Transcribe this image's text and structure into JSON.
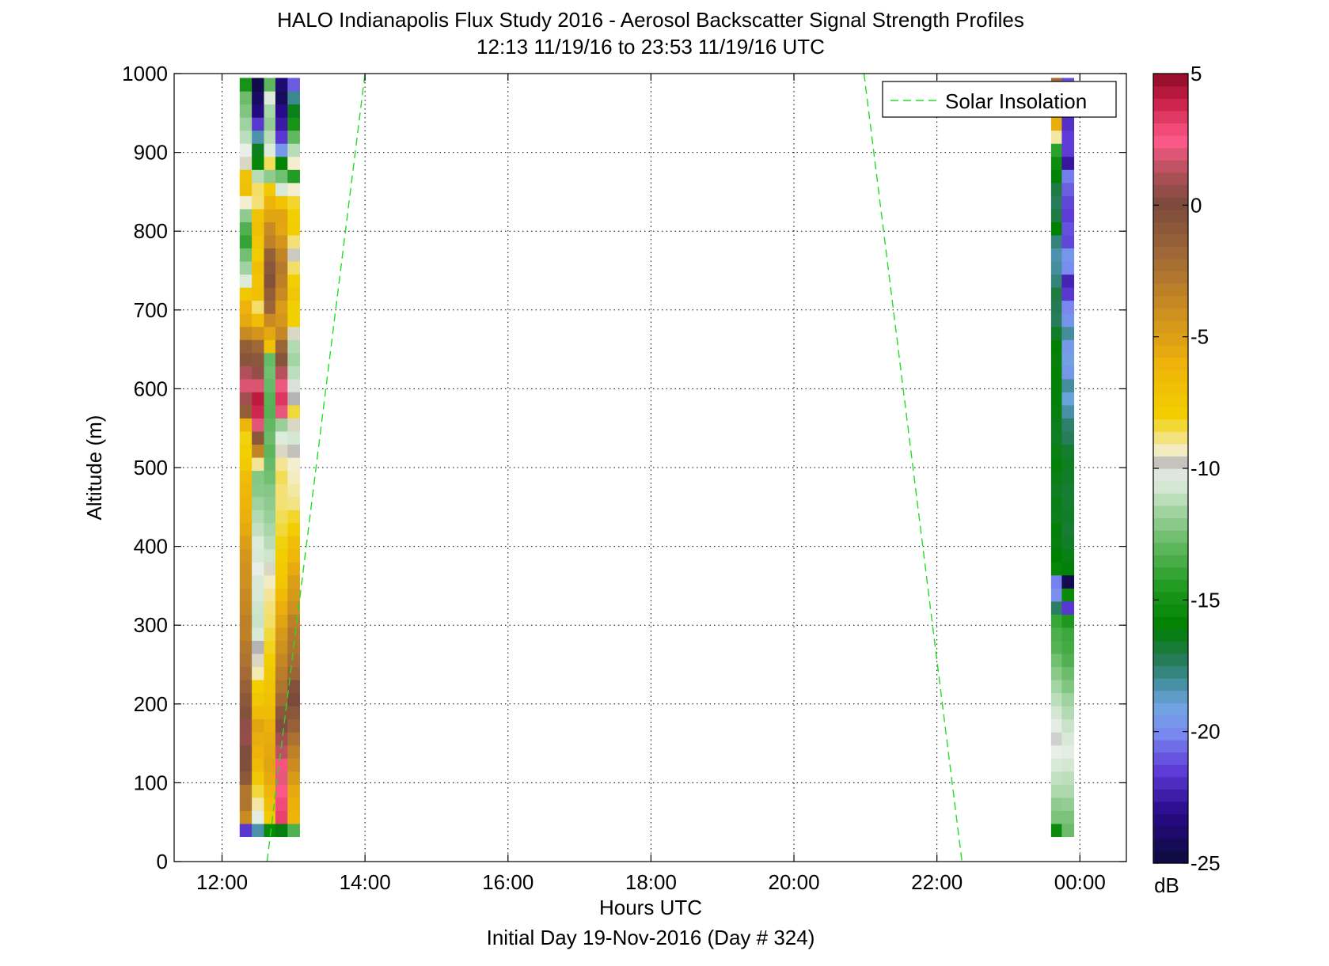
{
  "chart_data": {
    "type": "heatmap",
    "title": "HALO Indianapolis Flux Study 2016 - Aerosol Backscatter Signal Strength Profiles",
    "subtitle": "12:13 11/19/16 to 23:53 11/19/16  UTC",
    "xlabel": "Hours UTC",
    "xlabel2": "Initial Day 19-Nov-2016 (Day # 324)",
    "ylabel": "Altitude (m)",
    "xlim_hours": [
      11.33,
      24.65
    ],
    "ylim": [
      0,
      1000
    ],
    "x_ticks": [
      {
        "value": 12,
        "label": "12:00"
      },
      {
        "value": 14,
        "label": "14:00"
      },
      {
        "value": 16,
        "label": "16:00"
      },
      {
        "value": 18,
        "label": "18:00"
      },
      {
        "value": 20,
        "label": "20:00"
      },
      {
        "value": 22,
        "label": "22:00"
      },
      {
        "value": 24,
        "label": "00:00"
      }
    ],
    "y_ticks": [
      0,
      100,
      200,
      300,
      400,
      500,
      600,
      700,
      800,
      900,
      1000
    ],
    "grid": true,
    "legend": {
      "label": "Solar Insolation",
      "placement": "top-right"
    },
    "colorbar": {
      "label": "dB",
      "min": -25,
      "max": 5,
      "ticks": [
        5,
        0,
        -5,
        -10,
        -15,
        -20,
        -25
      ]
    },
    "solar_insolation": [
      {
        "segment": "morning",
        "points": [
          [
            12.63,
            0
          ],
          [
            14.0,
            1000
          ]
        ]
      },
      {
        "segment": "evening",
        "points": [
          [
            20.98,
            1000
          ],
          [
            22.35,
            0
          ]
        ]
      }
    ],
    "colormap": [
      [
        -25,
        "#0b0b3b"
      ],
      [
        -23,
        "#2a0a8c"
      ],
      [
        -21.5,
        "#5e3ad6"
      ],
      [
        -20,
        "#7b8cf0"
      ],
      [
        -19,
        "#6fa6e0"
      ],
      [
        -18,
        "#3e8a96"
      ],
      [
        -17.2,
        "#247a52"
      ],
      [
        -16,
        "#008000"
      ],
      [
        -14.5,
        "#1f9a1f"
      ],
      [
        -13,
        "#5db65d"
      ],
      [
        -11.5,
        "#a8d6a8"
      ],
      [
        -10.3,
        "#e8efe8"
      ],
      [
        -9.9,
        "#b4b4b4"
      ],
      [
        -9.4,
        "#f3eed0"
      ],
      [
        -8,
        "#f2d000"
      ],
      [
        -6,
        "#eeb20b"
      ],
      [
        -4,
        "#cc8e20"
      ],
      [
        -2,
        "#a36a36"
      ],
      [
        0,
        "#7a4a3c"
      ],
      [
        1.2,
        "#b05058"
      ],
      [
        2.5,
        "#ff5a8a"
      ],
      [
        4,
        "#c81e46"
      ],
      [
        5,
        "#8b0a25"
      ]
    ],
    "gate_altitudes": [
      40,
      56.6,
      73.2,
      89.8,
      106.4,
      123,
      139.6,
      156.2,
      172.8,
      189.4,
      206,
      222.6,
      239.2,
      255.8,
      272.4,
      289,
      305.6,
      322.2,
      338.8,
      355.4,
      372,
      388.6,
      405.2,
      421.8,
      438.4,
      455,
      471.6,
      488.2,
      504.8,
      521.4,
      538,
      554.6,
      571.2,
      587.8,
      604.4,
      621,
      637.6,
      654.2,
      670.8,
      687.4,
      704,
      720.6,
      737.2,
      753.8,
      770.4,
      787,
      803.6,
      820.2,
      836.8,
      853.4,
      870,
      886.6,
      903.2,
      919.8,
      936.4,
      953,
      969.6,
      986.2
    ],
    "profiles": [
      {
        "time_hours": 12.33,
        "values_db": [
          -21.6,
          -3.9,
          -2.6,
          -2.7,
          -0.9,
          -0.3,
          -0.2,
          0.6,
          0.5,
          -0.5,
          -0.9,
          -1.4,
          -2.0,
          -2.5,
          -2.8,
          -3.3,
          -3.2,
          -3.6,
          -3.8,
          -4.1,
          -4.2,
          -4.5,
          -4.9,
          -5.5,
          -5.9,
          -6.1,
          -6.3,
          -6.7,
          -7.6,
          -8.0,
          -8.1,
          -6.2,
          -1.2,
          0.9,
          1.9,
          1.2,
          -0.7,
          -1.2,
          -3.8,
          -5.5,
          -6.0,
          -7.4,
          -10.5,
          -11.7,
          -12.6,
          -14.0,
          -13.3,
          -12.0,
          -9.4,
          -6.9,
          -7.1,
          -9.6,
          -10.3,
          -11.1,
          -11.7,
          -12.3,
          -12.7,
          -14.9
        ]
      },
      {
        "time_hours": 12.5,
        "values_db": [
          -18.3,
          -10.4,
          -9.1,
          -8.4,
          -7.3,
          -6.5,
          -6.0,
          -5.7,
          -5.3,
          -6.6,
          -7.3,
          -8.0,
          -9.2,
          -9.6,
          -9.9,
          -10.6,
          -10.9,
          -10.8,
          -10.6,
          -10.6,
          -10.3,
          -10.6,
          -10.5,
          -11.0,
          -11.3,
          -11.7,
          -12.1,
          -12.2,
          -9.0,
          -3.5,
          -0.8,
          2.0,
          3.8,
          4.2,
          1.9,
          0.6,
          -0.8,
          -1.8,
          -4.4,
          -6.8,
          -8.7,
          -6.9,
          -7.2,
          -6.8,
          -7.7,
          -7.3,
          -6.9,
          -7.2,
          -8.8,
          -8.7,
          -11.2,
          -15.7,
          -16.4,
          -18.3,
          -21.6,
          -23.4,
          -24.1,
          -24.6
        ]
      },
      {
        "time_hours": 12.67,
        "values_db": [
          -15.4,
          -7.5,
          -6.8,
          -6.2,
          -5.5,
          -5.2,
          -5.4,
          -5.6,
          -5.9,
          -6.6,
          -6.9,
          -7.2,
          -7.5,
          -7.8,
          -8.2,
          -8.4,
          -8.7,
          -8.8,
          -9.0,
          -9.3,
          -9.6,
          -10.8,
          -11.2,
          -11.5,
          -11.8,
          -12.0,
          -12.2,
          -12.6,
          -12.8,
          -13.0,
          -12.7,
          -12.9,
          -13.2,
          -13.1,
          -12.8,
          -12.6,
          -12.8,
          -6.9,
          -5.4,
          -3.8,
          -1.7,
          -1.2,
          -0.4,
          -0.8,
          -1.3,
          -3.3,
          -3.8,
          -5.3,
          -6.1,
          -7.5,
          -12.0,
          -8.6,
          -10.5,
          -11.2,
          -11.9,
          -11.5,
          -10.5,
          -13.0
        ]
      },
      {
        "time_hours": 12.83,
        "values_db": [
          -16.2,
          3.1,
          2.9,
          2.6,
          2.1,
          2.7,
          1.4,
          0.9,
          0.2,
          -0.8,
          -1.9,
          -2.6,
          -3.1,
          -3.6,
          -4.1,
          -4.6,
          -5.3,
          -5.8,
          -6.6,
          -7.3,
          -7.6,
          -7.8,
          -8.1,
          -8.4,
          -8.6,
          -8.8,
          -8.8,
          -8.6,
          -9.0,
          -9.6,
          -10.5,
          -11.8,
          2.1,
          3.4,
          2.2,
          1.3,
          -0.6,
          -1.6,
          -3.6,
          -4.5,
          -4.8,
          -3.8,
          -3.2,
          -2.9,
          -3.5,
          -4.4,
          -5.4,
          -5.3,
          -7.1,
          -10.6,
          -12.6,
          -15.8,
          -19.5,
          -21.6,
          -22.5,
          -23.0,
          -24.2,
          -23.7
        ]
      },
      {
        "time_hours": 13.0,
        "values_db": [
          -13.3,
          -6.1,
          -5.9,
          -5.5,
          -4.7,
          -3.9,
          -3.3,
          -2.4,
          -1.4,
          -0.8,
          0.0,
          -0.4,
          -1.6,
          -2.1,
          -2.6,
          -2.8,
          -3.2,
          -4.1,
          -4.6,
          -4.9,
          -5.6,
          -6.4,
          -6.8,
          -7.8,
          -8.3,
          -8.9,
          -9.1,
          -9.3,
          -9.4,
          -9.8,
          -10.7,
          -9.6,
          -8.4,
          -9.9,
          -10.2,
          -11.1,
          -11.6,
          -11.3,
          -9.6,
          -8.0,
          -7.9,
          -7.3,
          -7.9,
          -8.7,
          -9.7,
          -8.8,
          -7.8,
          -7.9,
          -8.3,
          -9.4,
          -14.4,
          -9.4,
          -11.2,
          -12.9,
          -14.9,
          -16.4,
          -17.9,
          -20.9
        ]
      }
    ],
    "profiles_evening": [
      {
        "time_hours": 23.68,
        "values_db": [
          -15.4,
          -12.4,
          -12.0,
          -11.4,
          -11.0,
          -10.6,
          -10.3,
          -10.1,
          -10.4,
          -10.7,
          -11.1,
          -11.6,
          -12.1,
          -12.6,
          -13.2,
          -13.4,
          -13.9,
          -17.4,
          -19.8,
          -20.2,
          -15.7,
          -16.0,
          -16.2,
          -16.1,
          -16.4,
          -16.3,
          -16.5,
          -16.3,
          -16.1,
          -16.3,
          -16.5,
          -16.4,
          -16.2,
          -16.1,
          -16.1,
          -15.9,
          -16.2,
          -16.0,
          -16.6,
          -17.3,
          -17.2,
          -17.0,
          -17.7,
          -18.1,
          -18.3,
          -17.7,
          -16.0,
          -17.0,
          -17.3,
          -17.0,
          -16.1,
          -15.3,
          -14.2,
          -9.1,
          -5.7,
          -4.5,
          -3.5,
          -2.1
        ]
      },
      {
        "time_hours": 23.83,
        "values_db": [
          -12.7,
          -12.4,
          -11.9,
          -11.4,
          -11.1,
          -10.7,
          -10.4,
          -10.6,
          -10.9,
          -11.3,
          -11.7,
          -12.3,
          -12.7,
          -13.3,
          -13.6,
          -13.8,
          -14.6,
          -21.6,
          -15.5,
          -24.5,
          -16.1,
          -16.3,
          -16.6,
          -16.8,
          -16.6,
          -16.7,
          -16.8,
          -16.6,
          -16.5,
          -16.7,
          -17.3,
          -17.5,
          -18.2,
          -18.9,
          -18.1,
          -19.6,
          -19.2,
          -19.5,
          -18.1,
          -19.7,
          -20.1,
          -21.6,
          -22.2,
          -20.0,
          -19.6,
          -21.3,
          -21.1,
          -21.5,
          -21.3,
          -20.8,
          -20.3,
          -22.6,
          -21.5,
          -21.5,
          -21.8,
          -21.2,
          -20.4,
          -21.1
        ]
      }
    ]
  }
}
